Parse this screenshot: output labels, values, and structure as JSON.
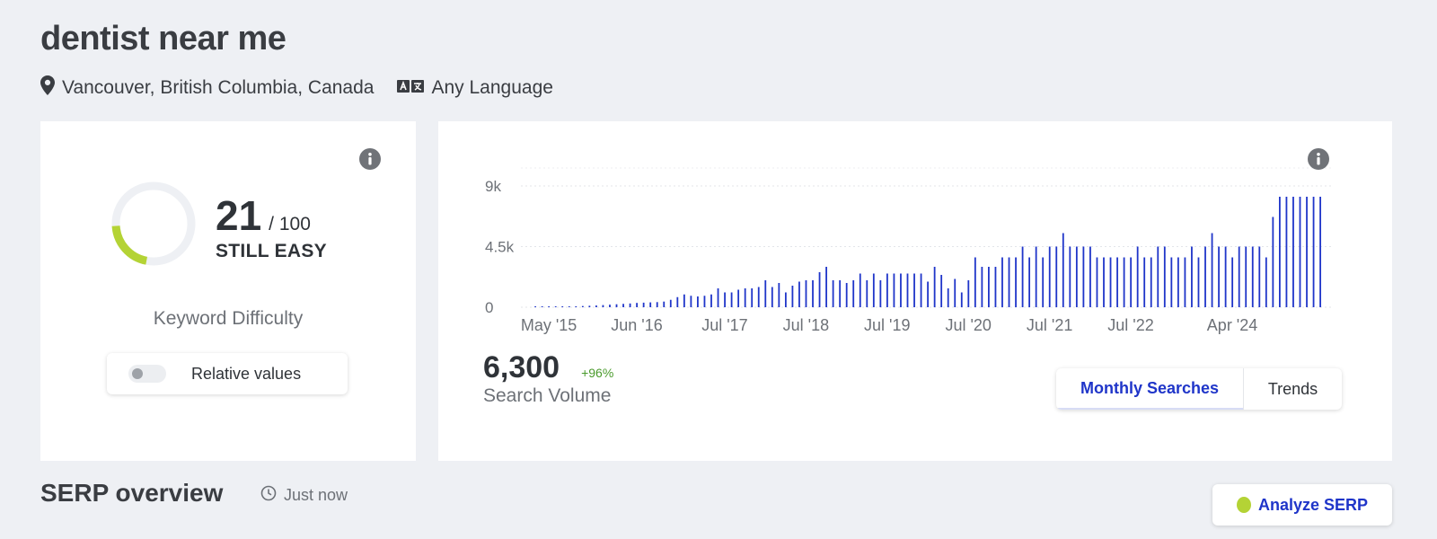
{
  "keyword": {
    "title": "dentist near me",
    "location": "Vancouver, British Columbia, Canada",
    "language": "Any Language"
  },
  "icons": {
    "location": "map-pin-icon",
    "language": "language-icon",
    "info": "info-icon",
    "clock": "clock-icon"
  },
  "difficulty": {
    "score": "21",
    "max": "/ 100",
    "label": "STILL EASY",
    "caption": "Keyword Difficulty",
    "score_value": 21,
    "max_value": 100,
    "relative_values_label": "Relative values",
    "relative_values_on": false
  },
  "volume": {
    "value": "6,300",
    "change": "+96%",
    "caption": "Search Volume",
    "tabs": [
      {
        "label": "Monthly Searches",
        "active": true
      },
      {
        "label": "Trends",
        "active": false
      }
    ]
  },
  "chart_data": {
    "type": "bar",
    "y_ticks": [
      "0",
      "4.5k",
      "9k"
    ],
    "ylim": [
      0,
      9000
    ],
    "x_tick_labels": [
      "May '15",
      "Jun '16",
      "Jul '17",
      "Jul '18",
      "Jul '19",
      "Jul '20",
      "Jul '21",
      "Jul '22",
      "Apr '24"
    ],
    "x_tick_indices": [
      2,
      15,
      28,
      40,
      52,
      64,
      76,
      88,
      103
    ],
    "values": [
      20,
      20,
      30,
      40,
      50,
      60,
      70,
      90,
      110,
      130,
      160,
      190,
      220,
      250,
      280,
      320,
      340,
      360,
      380,
      420,
      550,
      750,
      950,
      850,
      800,
      850,
      950,
      1400,
      1100,
      1100,
      1300,
      1400,
      1400,
      1500,
      2000,
      1500,
      1800,
      1100,
      1600,
      1900,
      2000,
      2000,
      2600,
      3000,
      2000,
      2000,
      1800,
      2000,
      2500,
      2000,
      2500,
      2000,
      2500,
      2500,
      2500,
      2500,
      2500,
      2500,
      1900,
      3000,
      2400,
      1400,
      2100,
      1100,
      2000,
      3700,
      3000,
      3000,
      3000,
      3700,
      3700,
      3700,
      4500,
      3700,
      4500,
      3700,
      4500,
      4500,
      5500,
      4500,
      4500,
      4500,
      4500,
      3700,
      3700,
      3700,
      3700,
      3700,
      3700,
      4500,
      3700,
      3700,
      4500,
      4500,
      3700,
      3700,
      3700,
      4500,
      3700,
      4500,
      5500,
      4500,
      4500,
      3700,
      4500,
      4500,
      4500,
      4500,
      3700,
      6700,
      8200,
      8200,
      8200,
      8200,
      8200,
      8200,
      8200
    ],
    "bar_color": "#1f35c9"
  },
  "serp": {
    "title": "SERP overview",
    "updated": "Just now",
    "analyze_label": "Analyze SERP"
  },
  "colors": {
    "accent": "#1f35c9",
    "difficulty_arc": "#b4d335",
    "change_positive": "#4a9a2c"
  }
}
